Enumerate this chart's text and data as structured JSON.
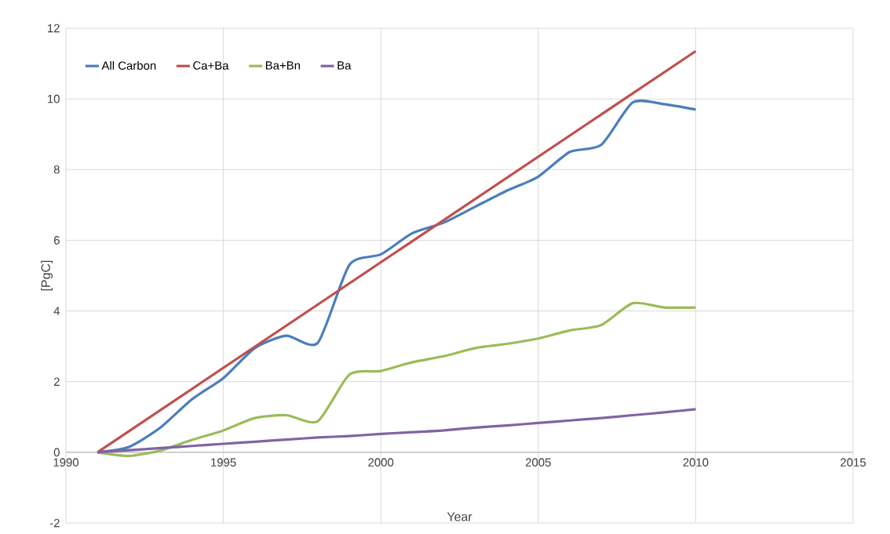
{
  "chart_data": {
    "type": "line",
    "xlabel": "Year",
    "ylabel": "[PgC]",
    "xlim": [
      1990,
      2015
    ],
    "xticks": [
      1990,
      1995,
      2000,
      2005,
      2010,
      2015
    ],
    "ylim": [
      -2,
      12
    ],
    "yticks": [
      -2,
      0,
      2,
      4,
      6,
      8,
      10,
      12
    ],
    "grid": true,
    "legend": "top left",
    "marker": "none",
    "line_style": "solid",
    "x": [
      1991,
      1992,
      1993,
      1994,
      1995,
      1996,
      1997,
      1998,
      1999,
      2000,
      2001,
      2002,
      2003,
      2004,
      2005,
      2006,
      2007,
      2008,
      2009,
      2010
    ],
    "series": [
      {
        "name": "All Carbon",
        "color": "#4a7ebb",
        "values": [
          0,
          0.15,
          0.7,
          1.5,
          2.1,
          2.95,
          3.3,
          3.1,
          5.3,
          5.6,
          6.2,
          6.5,
          6.95,
          7.4,
          7.8,
          8.5,
          8.7,
          9.9,
          9.85,
          9.7
        ]
      },
      {
        "name": "Ca+Ba",
        "color": "#c0504d",
        "x": [
          1991,
          2010
        ],
        "values": [
          0,
          11.35
        ]
      },
      {
        "name": "Ba+Bn",
        "color": "#9bbb59",
        "values": [
          0,
          -0.1,
          0.05,
          0.35,
          0.62,
          0.97,
          1.05,
          0.88,
          2.2,
          2.3,
          2.55,
          2.72,
          2.95,
          3.07,
          3.22,
          3.45,
          3.6,
          4.22,
          4.1,
          4.1
        ]
      },
      {
        "name": "Ba",
        "color": "#8064a2",
        "values": [
          0,
          0.06,
          0.12,
          0.18,
          0.24,
          0.3,
          0.36,
          0.42,
          0.46,
          0.52,
          0.57,
          0.62,
          0.7,
          0.76,
          0.83,
          0.9,
          0.97,
          1.05,
          1.13,
          1.22
        ]
      }
    ]
  }
}
